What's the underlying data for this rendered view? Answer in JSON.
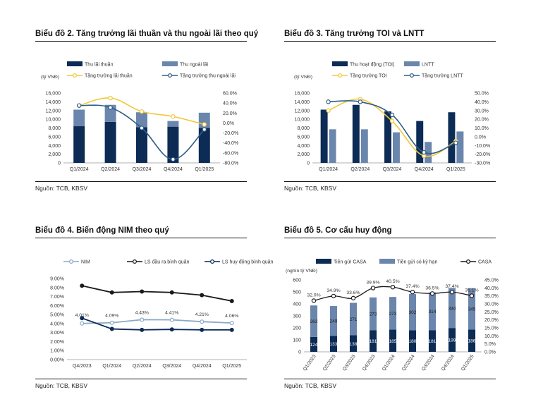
{
  "panels": [
    {
      "title": "Biểu đồ 2. Tăng trưởng lãi thuần và thu ngoài lãi theo quý",
      "source": "Nguồn: TCB, KBSV"
    },
    {
      "title": "Biểu đồ 3. Tăng trưởng TOI và LNTT",
      "source": "Nguồn: TCB, KBSV"
    },
    {
      "title": "Biểu đồ 4. Biến động NIM theo quý",
      "source": "Nguồn: TCB, KBSV"
    },
    {
      "title": "Biểu đồ 5. Cơ cấu huy động",
      "source": "Nguồn: TCB, KBSV"
    }
  ],
  "colors": {
    "navy": "#0c2b55",
    "steel": "#6b86ac",
    "gold": "#f2c73a",
    "line_blue": "#2e5d86",
    "nim_blue": "#8aa8c8",
    "black": "#1a1a1a"
  },
  "chart_data": [
    {
      "type": "bar",
      "unit_label": "(tỷ VNĐ)",
      "categories": [
        "Q1/2024",
        "Q2/2024",
        "Q3/2024",
        "Q4/2024",
        "Q1/2025"
      ],
      "series": [
        {
          "name": "Thu lãi thuần",
          "kind": "bar_stack",
          "values": [
            8400,
            9400,
            8200,
            8300,
            8000
          ]
        },
        {
          "name": "Thu ngoài lãi",
          "kind": "bar_stack",
          "values": [
            3800,
            3900,
            3400,
            1300,
            3500
          ]
        },
        {
          "name": "Tăng trưởng lãi thuần",
          "kind": "line_right",
          "values": [
            35,
            50,
            23,
            13,
            -3
          ]
        },
        {
          "name": "Tăng trưởng thu ngoài lãi",
          "kind": "line_right",
          "values": [
            35,
            31,
            -10,
            -73,
            -13
          ]
        }
      ],
      "ylim": [
        0,
        16000
      ],
      "yticks": [
        "0",
        "2,000",
        "4,000",
        "6,000",
        "8,000",
        "10,000",
        "12,000",
        "14,000",
        "16,000"
      ],
      "y2lim": [
        -80,
        60
      ],
      "y2ticks": [
        "-80.0%",
        "-60.0%",
        "-40.0%",
        "-20.0%",
        "0.0%",
        "20.0%",
        "40.0%",
        "60.0%"
      ],
      "legend": "top"
    },
    {
      "type": "bar",
      "unit_label": "(tỷ VNĐ)",
      "categories": [
        "Q1/2024",
        "Q2/2024",
        "Q3/2024",
        "Q4/2024",
        "Q1/2025"
      ],
      "series": [
        {
          "name": "Thu hoạt động (TOI)",
          "kind": "bar",
          "values": [
            12200,
            13300,
            11800,
            9600,
            11600
          ]
        },
        {
          "name": "LNTT",
          "kind": "bar",
          "values": [
            7700,
            7700,
            7000,
            4800,
            7200
          ]
        },
        {
          "name": "Tăng trưởng TOI",
          "kind": "line_right",
          "values": [
            30,
            43,
            18,
            -22,
            -5
          ]
        },
        {
          "name": "Tăng trưởng LNTT",
          "kind": "line_right",
          "values": [
            40,
            40,
            25,
            -18,
            -7
          ]
        }
      ],
      "ylim": [
        0,
        16000
      ],
      "yticks": [
        "0",
        "2,000",
        "4,000",
        "6,000",
        "8,000",
        "10,000",
        "12,000",
        "14,000",
        "16,000"
      ],
      "y2lim": [
        -30,
        50
      ],
      "y2ticks": [
        "-30.0%",
        "-20.0%",
        "-10.0%",
        "0.0%",
        "10.0%",
        "20.0%",
        "30.0%",
        "40.0%",
        "50.0%"
      ],
      "legend": "top"
    },
    {
      "type": "line",
      "categories": [
        "Q4/2023",
        "Q1/2024",
        "Q2/2024",
        "Q3/2024",
        "Q4/2024",
        "Q1/2025"
      ],
      "series": [
        {
          "name": "NIM",
          "values": [
            4.01,
            4.09,
            4.43,
            4.41,
            4.21,
            4.06
          ],
          "labels": [
            "4.01%",
            "4.09%",
            "4.43%",
            "4.41%",
            "4.21%",
            "4.06%"
          ]
        },
        {
          "name": "LS đầu ra bình quân",
          "values": [
            8.2,
            7.45,
            7.55,
            7.45,
            7.15,
            6.5
          ]
        },
        {
          "name": "LS huy động bình quân",
          "values": [
            4.6,
            3.4,
            3.3,
            3.35,
            3.3,
            3.3
          ]
        }
      ],
      "ylim": [
        0,
        9
      ],
      "yticks": [
        "0.00%",
        "1.00%",
        "2.00%",
        "3.00%",
        "4.00%",
        "5.00%",
        "6.00%",
        "7.00%",
        "8.00%",
        "9.00%"
      ],
      "legend": "top"
    },
    {
      "type": "bar",
      "unit_label": "(nghìn tỷ VNĐ)",
      "categories": [
        "Q1/2023",
        "Q2/2023",
        "Q3/2023",
        "Q4/2023",
        "Q1/2024",
        "Q2/2024",
        "Q3/2024",
        "Q4/2024",
        "Q1/2025"
      ],
      "series": [
        {
          "name": "Tiền gửi CASA",
          "kind": "bar_stack",
          "values": [
            124,
            133,
            138,
            181,
            185,
            180,
            181,
            199,
            186
          ]
        },
        {
          "name": "Tiền gửi có kỳ hạn",
          "kind": "bar_stack",
          "values": [
            263,
            249,
            271,
            273,
            273,
            302,
            314,
            334,
            345
          ]
        },
        {
          "name": "CASA",
          "kind": "line_right",
          "values": [
            32.0,
            34.9,
            33.6,
            39.9,
            40.5,
            37.4,
            36.5,
            37.4,
            35.1
          ],
          "labels": [
            "32.0%",
            "34.9%",
            "33.6%",
            "39.9%",
            "40.5%",
            "37.4%",
            "36.5%",
            "37.4%",
            "35.1%"
          ]
        }
      ],
      "ylim": [
        0,
        600
      ],
      "yticks": [
        "0",
        "100",
        "200",
        "300",
        "400",
        "500",
        "600"
      ],
      "y2lim": [
        0,
        45
      ],
      "y2ticks": [
        "0.0%",
        "5.0%",
        "10.0%",
        "15.0%",
        "20.0%",
        "25.0%",
        "30.0%",
        "35.0%",
        "40.0%",
        "45.0%"
      ],
      "legend": "top"
    }
  ]
}
